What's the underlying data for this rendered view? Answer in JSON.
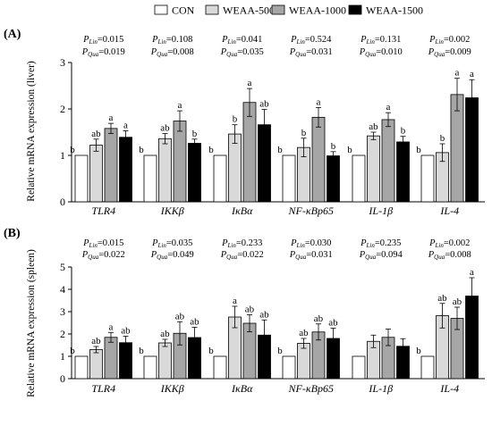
{
  "legend": {
    "items": [
      {
        "label": "CON",
        "color": "#ffffff"
      },
      {
        "label": "WEAA-500",
        "color": "#d9d9d9"
      },
      {
        "label": "WEAA-1000",
        "color": "#a6a6a6"
      },
      {
        "label": "WEAA-1500",
        "color": "#000000"
      }
    ]
  },
  "chart_data": [
    {
      "type": "bar",
      "panel_label": "(A)",
      "ylabel": "Relative mRNA expression (liver)",
      "ylim": [
        0,
        3
      ],
      "yticks": [
        "0",
        "1",
        "2",
        "3"
      ],
      "categories": [
        "TLR4",
        "IKKβ",
        "IκBα",
        "NF-κBp65",
        "IL-1β",
        "IL-4"
      ],
      "p_values": [
        {
          "lin": "0.015",
          "qua": "0.019"
        },
        {
          "lin": "0.108",
          "qua": "0.008"
        },
        {
          "lin": "0.041",
          "qua": "0.035"
        },
        {
          "lin": "0.524",
          "qua": "0.031"
        },
        {
          "lin": "0.131",
          "qua": "0.010"
        },
        {
          "lin": "0.002",
          "qua": "0.009"
        }
      ],
      "series": [
        {
          "name": "CON",
          "values": [
            1.0,
            1.0,
            1.0,
            1.0,
            1.0,
            1.0
          ],
          "errors": [
            0,
            0,
            0,
            0,
            0,
            0
          ],
          "letters": [
            "b",
            "b",
            "b",
            "b",
            "b",
            "b"
          ]
        },
        {
          "name": "WEAA-500",
          "values": [
            1.22,
            1.36,
            1.46,
            1.17,
            1.42,
            1.06
          ],
          "errors": [
            0.13,
            0.11,
            0.2,
            0.2,
            0.08,
            0.19
          ],
          "letters": [
            "ab",
            "ab",
            "b",
            "b",
            "ab",
            "b"
          ]
        },
        {
          "name": "WEAA-1000",
          "values": [
            1.58,
            1.74,
            2.14,
            1.82,
            1.77,
            2.31
          ],
          "errors": [
            0.11,
            0.22,
            0.3,
            0.21,
            0.15,
            0.35
          ],
          "letters": [
            "a",
            "a",
            "a",
            "a",
            "a",
            "a"
          ]
        },
        {
          "name": "WEAA-1500",
          "values": [
            1.39,
            1.26,
            1.66,
            0.99,
            1.29,
            2.24
          ],
          "errors": [
            0.14,
            0.09,
            0.33,
            0.09,
            0.12,
            0.39
          ],
          "letters": [
            "a",
            "b",
            "ab",
            "b",
            "b",
            "a"
          ]
        }
      ]
    },
    {
      "type": "bar",
      "panel_label": "(B)",
      "ylabel": "Relative mRNA expression (spleen)",
      "ylim": [
        0,
        5
      ],
      "yticks": [
        "0",
        "1",
        "2",
        "3",
        "4",
        "5"
      ],
      "categories": [
        "TLR4",
        "IKKβ",
        "IκBα",
        "NF-κBp65",
        "IL-1β",
        "IL-4"
      ],
      "p_values": [
        {
          "lin": "0.015",
          "qua": "0.022"
        },
        {
          "lin": "0.035",
          "qua": "0.049"
        },
        {
          "lin": "0.233",
          "qua": "0.022"
        },
        {
          "lin": "0.030",
          "qua": "0.031"
        },
        {
          "lin": "0.235",
          "qua": "0.094"
        },
        {
          "lin": "0.002",
          "qua": "0.008"
        }
      ],
      "series": [
        {
          "name": "CON",
          "values": [
            1.0,
            1.0,
            1.0,
            1.0,
            1.0,
            1.0
          ],
          "errors": [
            0,
            0,
            0,
            0,
            0,
            0
          ],
          "letters": [
            "b",
            "b",
            "b",
            "b",
            "",
            "b"
          ]
        },
        {
          "name": "WEAA-500",
          "values": [
            1.3,
            1.6,
            2.76,
            1.58,
            1.67,
            2.82
          ],
          "errors": [
            0.14,
            0.16,
            0.48,
            0.22,
            0.28,
            0.55
          ],
          "letters": [
            "ab",
            "ab",
            "a",
            "ab",
            "",
            "ab"
          ]
        },
        {
          "name": "WEAA-1000",
          "values": [
            1.85,
            2.03,
            2.48,
            2.09,
            1.85,
            2.7
          ],
          "errors": [
            0.22,
            0.52,
            0.38,
            0.36,
            0.37,
            0.5
          ],
          "letters": [
            "a",
            "ab",
            "ab",
            "ab",
            "",
            "ab"
          ]
        },
        {
          "name": "WEAA-1500",
          "values": [
            1.61,
            1.84,
            1.95,
            1.8,
            1.45,
            3.7
          ],
          "errors": [
            0.29,
            0.46,
            0.68,
            0.46,
            0.34,
            0.82
          ],
          "letters": [
            "ab",
            "ab",
            "ab",
            "ab",
            "",
            "a"
          ]
        }
      ]
    }
  ]
}
